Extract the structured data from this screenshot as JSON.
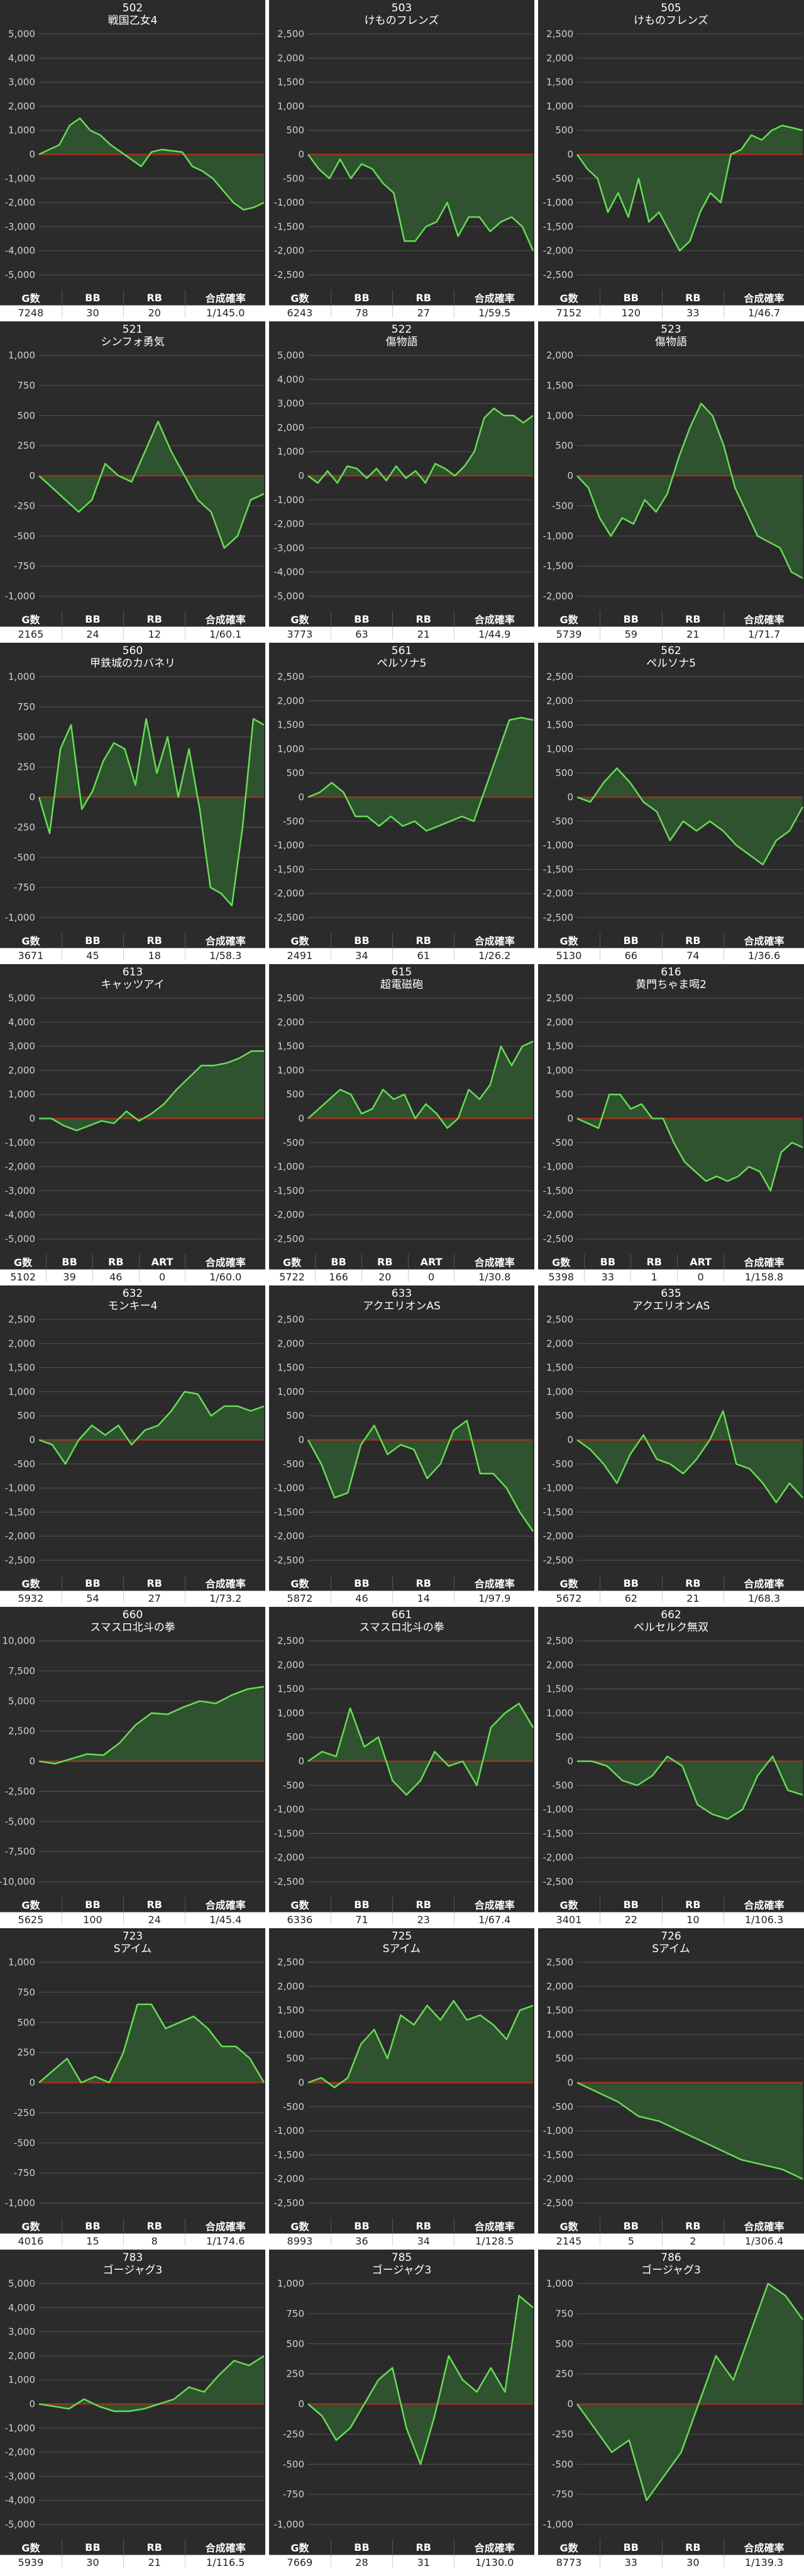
{
  "page_bg": "#ffffff",
  "colors": {
    "panel_bg": "#2b2b2b",
    "grid": "#555555",
    "zero_line": "#b03020",
    "line": "#66dd55",
    "fill": "#2f5a2f",
    "text": "#ffffff"
  },
  "chart_data": [
    {
      "type": "area",
      "number": "502",
      "name": "戦国乙女4",
      "ylim": [
        -5000,
        5000
      ],
      "yticks": [
        5000,
        4000,
        3000,
        2000,
        1000,
        0,
        -1000,
        -2000,
        -3000,
        -4000,
        -5000
      ],
      "values": [
        0,
        200,
        400,
        1200,
        1500,
        1000,
        800,
        400,
        100,
        -200,
        -500,
        100,
        200,
        150,
        100,
        -500,
        -700,
        -1000,
        -1500,
        -2000,
        -2300,
        -2200,
        -2000
      ],
      "headers": [
        "G数",
        "BB",
        "RB",
        "合成確率"
      ],
      "stats": [
        "7248",
        "30",
        "20",
        "1/145.0"
      ]
    },
    {
      "type": "area",
      "number": "503",
      "name": "けものフレンズ",
      "ylim": [
        -2500,
        2500
      ],
      "yticks": [
        2500,
        2000,
        1500,
        1000,
        500,
        0,
        -500,
        -1000,
        -1500,
        -2000,
        -2500
      ],
      "values": [
        0,
        -300,
        -500,
        -100,
        -500,
        -200,
        -300,
        -600,
        -800,
        -1800,
        -1800,
        -1500,
        -1400,
        -1000,
        -1700,
        -1300,
        -1300,
        -1600,
        -1400,
        -1300,
        -1500,
        -2000
      ],
      "headers": [
        "G数",
        "BB",
        "RB",
        "合成確率"
      ],
      "stats": [
        "6243",
        "78",
        "27",
        "1/59.5"
      ]
    },
    {
      "type": "area",
      "number": "505",
      "name": "けものフレンズ",
      "ylim": [
        -2500,
        2500
      ],
      "yticks": [
        2500,
        2000,
        1500,
        1000,
        500,
        0,
        -500,
        -1000,
        -1500,
        -2000,
        -2500
      ],
      "values": [
        0,
        -300,
        -500,
        -1200,
        -800,
        -1300,
        -500,
        -1400,
        -1200,
        -1600,
        -2000,
        -1800,
        -1200,
        -800,
        -1000,
        0,
        100,
        400,
        300,
        500,
        600,
        550,
        500
      ],
      "headers": [
        "G数",
        "BB",
        "RB",
        "合成確率"
      ],
      "stats": [
        "7152",
        "120",
        "33",
        "1/46.7"
      ]
    },
    {
      "type": "area",
      "number": "521",
      "name": "シンフォ勇気",
      "ylim": [
        -1000,
        1000
      ],
      "yticks": [
        1000,
        750,
        500,
        250,
        0,
        -250,
        -500,
        -750,
        -1000
      ],
      "values": [
        0,
        -100,
        -200,
        -300,
        -200,
        100,
        0,
        -50,
        200,
        450,
        200,
        0,
        -200,
        -300,
        -600,
        -500,
        -200,
        -150
      ],
      "headers": [
        "G数",
        "BB",
        "RB",
        "合成確率"
      ],
      "stats": [
        "2165",
        "24",
        "12",
        "1/60.1"
      ]
    },
    {
      "type": "area",
      "number": "522",
      "name": "傷物語",
      "ylim": [
        -5000,
        5000
      ],
      "yticks": [
        5000,
        4000,
        3000,
        2000,
        1000,
        0,
        -1000,
        -2000,
        -3000,
        -4000,
        -5000
      ],
      "values": [
        0,
        -300,
        200,
        -300,
        400,
        300,
        -100,
        300,
        -200,
        400,
        -100,
        200,
        -300,
        500,
        300,
        0,
        400,
        1000,
        2400,
        2800,
        2500,
        2500,
        2200,
        2500
      ],
      "headers": [
        "G数",
        "BB",
        "RB",
        "合成確率"
      ],
      "stats": [
        "3773",
        "63",
        "21",
        "1/44.9"
      ]
    },
    {
      "type": "area",
      "number": "523",
      "name": "傷物語",
      "ylim": [
        -2000,
        2000
      ],
      "yticks": [
        2000,
        1500,
        1000,
        500,
        0,
        -500,
        -1000,
        -1500,
        -2000
      ],
      "values": [
        0,
        -200,
        -700,
        -1000,
        -700,
        -800,
        -400,
        -600,
        -300,
        300,
        800,
        1200,
        1000,
        500,
        -200,
        -600,
        -1000,
        -1100,
        -1200,
        -1600,
        -1700
      ],
      "headers": [
        "G数",
        "BB",
        "RB",
        "合成確率"
      ],
      "stats": [
        "5739",
        "59",
        "21",
        "1/71.7"
      ]
    },
    {
      "type": "area",
      "number": "560",
      "name": "甲鉄城のカバネリ",
      "ylim": [
        -1000,
        1000
      ],
      "yticks": [
        1000,
        750,
        500,
        250,
        0,
        -250,
        -500,
        -750,
        -1000
      ],
      "values": [
        0,
        -300,
        400,
        600,
        -100,
        50,
        300,
        450,
        400,
        100,
        650,
        200,
        500,
        0,
        400,
        -100,
        -750,
        -800,
        -900,
        -250,
        650,
        600
      ],
      "headers": [
        "G数",
        "BB",
        "RB",
        "合成確率"
      ],
      "stats": [
        "3671",
        "45",
        "18",
        "1/58.3"
      ]
    },
    {
      "type": "area",
      "number": "561",
      "name": "ペルソナ5",
      "ylim": [
        -2500,
        2500
      ],
      "yticks": [
        2500,
        2000,
        1500,
        1000,
        500,
        0,
        -500,
        -1000,
        -1500,
        -2000,
        -2500
      ],
      "values": [
        0,
        100,
        300,
        100,
        -400,
        -400,
        -600,
        -400,
        -600,
        -500,
        -700,
        -600,
        -500,
        -400,
        -500,
        200,
        900,
        1600,
        1650,
        1600
      ],
      "headers": [
        "G数",
        "BB",
        "RB",
        "合成確率"
      ],
      "stats": [
        "2491",
        "34",
        "61",
        "1/26.2"
      ]
    },
    {
      "type": "area",
      "number": "562",
      "name": "ペルソナ5",
      "ylim": [
        -2500,
        2500
      ],
      "yticks": [
        2500,
        2000,
        1500,
        1000,
        500,
        0,
        -500,
        -1000,
        -1500,
        -2000,
        -2500
      ],
      "values": [
        0,
        -100,
        300,
        600,
        300,
        -100,
        -300,
        -900,
        -500,
        -700,
        -500,
        -700,
        -1000,
        -1200,
        -1400,
        -900,
        -700,
        -200
      ],
      "headers": [
        "G数",
        "BB",
        "RB",
        "合成確率"
      ],
      "stats": [
        "5130",
        "66",
        "74",
        "1/36.6"
      ]
    },
    {
      "type": "area",
      "number": "613",
      "name": "キャッツアイ",
      "ylim": [
        -5000,
        5000
      ],
      "yticks": [
        5000,
        4000,
        3000,
        2000,
        1000,
        0,
        -1000,
        -2000,
        -3000,
        -4000,
        -5000
      ],
      "values": [
        0,
        0,
        -300,
        -500,
        -300,
        -100,
        -200,
        300,
        -100,
        200,
        600,
        1200,
        1700,
        2200,
        2200,
        2300,
        2500,
        2800,
        2800
      ],
      "headers": [
        "G数",
        "BB",
        "RB",
        "ART",
        "合成確率"
      ],
      "stats": [
        "5102",
        "39",
        "46",
        "0",
        "1/60.0"
      ]
    },
    {
      "type": "area",
      "number": "615",
      "name": "超電磁砲",
      "ylim": [
        -2500,
        2500
      ],
      "yticks": [
        2500,
        2000,
        1500,
        1000,
        500,
        0,
        -500,
        -1000,
        -1500,
        -2000,
        -2500
      ],
      "values": [
        0,
        200,
        400,
        600,
        500,
        100,
        200,
        600,
        400,
        500,
        0,
        300,
        100,
        -200,
        0,
        600,
        400,
        700,
        1500,
        1100,
        1500,
        1600
      ],
      "headers": [
        "G数",
        "BB",
        "RB",
        "ART",
        "合成確率"
      ],
      "stats": [
        "5722",
        "166",
        "20",
        "0",
        "1/30.8"
      ]
    },
    {
      "type": "area",
      "number": "616",
      "name": "黄門ちゃま喝2",
      "ylim": [
        -2500,
        2500
      ],
      "yticks": [
        2500,
        2000,
        1500,
        1000,
        500,
        0,
        -500,
        -1000,
        -1500,
        -2000,
        -2500
      ],
      "values": [
        0,
        -100,
        -200,
        500,
        500,
        200,
        300,
        0,
        0,
        -500,
        -900,
        -1100,
        -1300,
        -1200,
        -1300,
        -1200,
        -1000,
        -1100,
        -1500,
        -700,
        -500,
        -600
      ],
      "headers": [
        "G数",
        "BB",
        "RB",
        "ART",
        "合成確率"
      ],
      "stats": [
        "5398",
        "33",
        "1",
        "0",
        "1/158.8"
      ]
    },
    {
      "type": "area",
      "number": "632",
      "name": "モンキー4",
      "ylim": [
        -2500,
        2500
      ],
      "yticks": [
        2500,
        2000,
        1500,
        1000,
        500,
        0,
        -500,
        -1000,
        -1500,
        -2000,
        -2500
      ],
      "values": [
        0,
        -100,
        -500,
        0,
        300,
        100,
        300,
        -100,
        200,
        300,
        600,
        1000,
        950,
        500,
        700,
        700,
        600,
        700
      ],
      "headers": [
        "G数",
        "BB",
        "RB",
        "合成確率"
      ],
      "stats": [
        "5932",
        "54",
        "27",
        "1/73.2"
      ]
    },
    {
      "type": "area",
      "number": "633",
      "name": "アクエリオンAS",
      "ylim": [
        -2500,
        2500
      ],
      "yticks": [
        2500,
        2000,
        1500,
        1000,
        500,
        0,
        -500,
        -1000,
        -1500,
        -2000,
        -2500
      ],
      "values": [
        0,
        -500,
        -1200,
        -1100,
        -100,
        300,
        -300,
        -100,
        -200,
        -800,
        -500,
        200,
        400,
        -700,
        -700,
        -1000,
        -1500,
        -1900
      ],
      "headers": [
        "G数",
        "BB",
        "RB",
        "合成確率"
      ],
      "stats": [
        "5872",
        "46",
        "14",
        "1/97.9"
      ]
    },
    {
      "type": "area",
      "number": "635",
      "name": "アクエリオンAS",
      "ylim": [
        -2500,
        2500
      ],
      "yticks": [
        2500,
        2000,
        1500,
        1000,
        500,
        0,
        -500,
        -1000,
        -1500,
        -2000,
        -2500
      ],
      "values": [
        0,
        -200,
        -500,
        -900,
        -300,
        100,
        -400,
        -500,
        -700,
        -400,
        0,
        600,
        -500,
        -600,
        -900,
        -1300,
        -900,
        -1200
      ],
      "headers": [
        "G数",
        "BB",
        "RB",
        "合成確率"
      ],
      "stats": [
        "5672",
        "62",
        "21",
        "1/68.3"
      ]
    },
    {
      "type": "area",
      "number": "660",
      "name": "スマスロ北斗の拳",
      "ylim": [
        -10000,
        10000
      ],
      "yticks": [
        10000,
        7500,
        5000,
        2500,
        0,
        -2500,
        -5000,
        -7500,
        -10000
      ],
      "values": [
        0,
        -200,
        200,
        600,
        500,
        1500,
        3000,
        4000,
        3900,
        4500,
        5000,
        4800,
        5500,
        6000,
        6200
      ],
      "headers": [
        "G数",
        "BB",
        "RB",
        "合成確率"
      ],
      "stats": [
        "5625",
        "100",
        "24",
        "1/45.4"
      ]
    },
    {
      "type": "area",
      "number": "661",
      "name": "スマスロ北斗の拳",
      "ylim": [
        -2500,
        2500
      ],
      "yticks": [
        2500,
        2000,
        1500,
        1000,
        500,
        0,
        -500,
        -1000,
        -1500,
        -2000,
        -2500
      ],
      "values": [
        0,
        200,
        100,
        1100,
        300,
        500,
        -400,
        -700,
        -400,
        200,
        -100,
        0,
        -500,
        700,
        1000,
        1200,
        700
      ],
      "headers": [
        "G数",
        "BB",
        "RB",
        "合成確率"
      ],
      "stats": [
        "6336",
        "71",
        "23",
        "1/67.4"
      ]
    },
    {
      "type": "area",
      "number": "662",
      "name": "ベルセルク無双",
      "ylim": [
        -2500,
        2500
      ],
      "yticks": [
        2500,
        2000,
        1500,
        1000,
        500,
        0,
        -500,
        -1000,
        -1500,
        -2000,
        -2500
      ],
      "values": [
        0,
        0,
        -100,
        -400,
        -500,
        -300,
        100,
        -100,
        -900,
        -1100,
        -1200,
        -1000,
        -300,
        100,
        -600,
        -700
      ],
      "headers": [
        "G数",
        "BB",
        "RB",
        "合成確率"
      ],
      "stats": [
        "3401",
        "22",
        "10",
        "1/106.3"
      ]
    },
    {
      "type": "area",
      "number": "723",
      "name": "Sアイム",
      "ylim": [
        -1000,
        1000
      ],
      "yticks": [
        1000,
        750,
        500,
        250,
        0,
        -250,
        -500,
        -750,
        -1000
      ],
      "values": [
        0,
        100,
        200,
        0,
        50,
        0,
        250,
        650,
        650,
        450,
        500,
        550,
        450,
        300,
        300,
        200,
        0
      ],
      "headers": [
        "G数",
        "BB",
        "RB",
        "合成確率"
      ],
      "stats": [
        "4016",
        "15",
        "8",
        "1/174.6"
      ]
    },
    {
      "type": "area",
      "number": "725",
      "name": "Sアイム",
      "ylim": [
        -2500,
        2500
      ],
      "yticks": [
        2500,
        2000,
        1500,
        1000,
        500,
        0,
        -500,
        -1000,
        -1500,
        -2000,
        -2500
      ],
      "values": [
        0,
        100,
        -100,
        100,
        800,
        1100,
        500,
        1400,
        1200,
        1600,
        1300,
        1700,
        1300,
        1400,
        1200,
        900,
        1500,
        1600
      ],
      "headers": [
        "G数",
        "BB",
        "RB",
        "合成確率"
      ],
      "stats": [
        "8993",
        "36",
        "34",
        "1/128.5"
      ]
    },
    {
      "type": "area",
      "number": "726",
      "name": "Sアイム",
      "ylim": [
        -2500,
        2500
      ],
      "yticks": [
        2500,
        2000,
        1500,
        1000,
        500,
        0,
        -500,
        -1000,
        -1500,
        -2000,
        -2500
      ],
      "values": [
        0,
        -200,
        -400,
        -700,
        -800,
        -1000,
        -1200,
        -1400,
        -1600,
        -1700,
        -1800,
        -2000
      ],
      "headers": [
        "G数",
        "BB",
        "RB",
        "合成確率"
      ],
      "stats": [
        "2145",
        "5",
        "2",
        "1/306.4"
      ]
    },
    {
      "type": "area",
      "number": "783",
      "name": "ゴージャグ3",
      "ylim": [
        -5000,
        5000
      ],
      "yticks": [
        5000,
        4000,
        3000,
        2000,
        1000,
        0,
        -1000,
        -2000,
        -3000,
        -4000,
        -5000
      ],
      "values": [
        0,
        -100,
        -200,
        200,
        -100,
        -300,
        -300,
        -200,
        0,
        200,
        700,
        500,
        1200,
        1800,
        1600,
        2000
      ],
      "headers": [
        "G数",
        "BB",
        "RB",
        "合成確率"
      ],
      "stats": [
        "5939",
        "30",
        "21",
        "1/116.5"
      ]
    },
    {
      "type": "area",
      "number": "785",
      "name": "ゴージャグ3",
      "ylim": [
        -1000,
        1000
      ],
      "yticks": [
        1000,
        750,
        500,
        250,
        0,
        -250,
        -500,
        -750,
        -1000
      ],
      "values": [
        0,
        -100,
        -300,
        -200,
        0,
        200,
        300,
        -200,
        -500,
        -100,
        400,
        200,
        100,
        300,
        100,
        900,
        800
      ],
      "headers": [
        "G数",
        "BB",
        "RB",
        "合成確率"
      ],
      "stats": [
        "7669",
        "28",
        "31",
        "1/130.0"
      ]
    },
    {
      "type": "area",
      "number": "786",
      "name": "ゴージャグ3",
      "ylim": [
        -1000,
        1000
      ],
      "yticks": [
        1000,
        750,
        500,
        250,
        0,
        -250,
        -500,
        -750,
        -1000
      ],
      "values": [
        0,
        -200,
        -400,
        -300,
        -800,
        -600,
        -400,
        0,
        400,
        200,
        600,
        1000,
        900,
        700
      ],
      "headers": [
        "G数",
        "BB",
        "RB",
        "合成確率"
      ],
      "stats": [
        "8773",
        "33",
        "30",
        "1/139.3"
      ]
    }
  ]
}
